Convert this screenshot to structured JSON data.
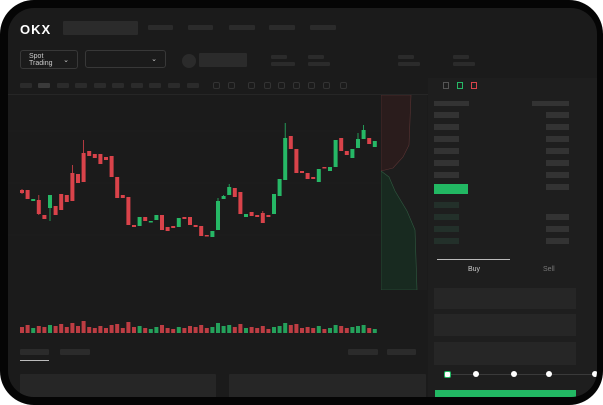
{
  "header": {
    "logo": "OKX"
  },
  "toolbar": {
    "market_select": "Spot Trading",
    "pair_select": ""
  },
  "trade": {
    "tabs": [
      "Buy",
      "Sell"
    ],
    "active_tab": "Buy",
    "slider_percent": 0
  },
  "colors": {
    "up": "#26b866",
    "down": "#d9434a",
    "background": "#1b1b1b",
    "accent": "#22b863"
  },
  "icons": {
    "orderbook_views": [
      "orderbook-both-icon",
      "orderbook-bids-icon",
      "orderbook-asks-icon"
    ]
  },
  "chart_data": {
    "type": "candlestick",
    "grid": true,
    "candles": [
      [
        118,
        115,
        119,
        114
      ],
      [
        118,
        109,
        118,
        109
      ],
      [
        107,
        109,
        109,
        107
      ],
      [
        108,
        94,
        113,
        93
      ],
      [
        93,
        89,
        93,
        89
      ],
      [
        100,
        113,
        100,
        87
      ],
      [
        102,
        93,
        102,
        93
      ],
      [
        114,
        98,
        114,
        98
      ],
      [
        113,
        106,
        113,
        106
      ],
      [
        135,
        107,
        143,
        107
      ],
      [
        134,
        125,
        134,
        125
      ],
      [
        155,
        126,
        168,
        126
      ],
      [
        157,
        152,
        157,
        152
      ],
      [
        154,
        150,
        154,
        150
      ],
      [
        154,
        144,
        154,
        144
      ],
      [
        151,
        148,
        151,
        148
      ],
      [
        152,
        131,
        152,
        131
      ],
      [
        131,
        110,
        131,
        110
      ],
      [
        113,
        110,
        113,
        110
      ],
      [
        111,
        83,
        111,
        83
      ],
      [
        83,
        81,
        83,
        81
      ],
      [
        82,
        91,
        82,
        91
      ],
      [
        91,
        87,
        91,
        87
      ],
      [
        87,
        87,
        87,
        86
      ],
      [
        88,
        93,
        88,
        93
      ],
      [
        93,
        78,
        93,
        78
      ],
      [
        81,
        77,
        81,
        77
      ],
      [
        82,
        80,
        82,
        80
      ],
      [
        81,
        90,
        81,
        90
      ],
      [
        91,
        89,
        91,
        89
      ],
      [
        91,
        83,
        91,
        83
      ],
      [
        83,
        81,
        83,
        81
      ],
      [
        82,
        72,
        82,
        72
      ],
      [
        73,
        72,
        73,
        72
      ],
      [
        71,
        77,
        71,
        77
      ],
      [
        78,
        107,
        110,
        78
      ],
      [
        109,
        112,
        113,
        109
      ],
      [
        113,
        121,
        124,
        113
      ],
      [
        120,
        111,
        120,
        111
      ],
      [
        116,
        94,
        116,
        94
      ],
      [
        91,
        94,
        91,
        94
      ],
      [
        96,
        92,
        96,
        92
      ],
      [
        93,
        91,
        93,
        91
      ],
      [
        95,
        85,
        97,
        85
      ],
      [
        93,
        91,
        93,
        91
      ],
      [
        94,
        114,
        114,
        94
      ],
      [
        112,
        129,
        129,
        112
      ],
      [
        128,
        170,
        185,
        128
      ],
      [
        172,
        159,
        172,
        159
      ],
      [
        159,
        135,
        159,
        135
      ],
      [
        137,
        135,
        137,
        135
      ],
      [
        135,
        129,
        135,
        129
      ],
      [
        131,
        129,
        131,
        129
      ],
      [
        126,
        139,
        139,
        126
      ],
      [
        141,
        140,
        141,
        140
      ],
      [
        137,
        141,
        141,
        137
      ],
      [
        141,
        168,
        168,
        141
      ],
      [
        170,
        157,
        170,
        157
      ],
      [
        157,
        153,
        157,
        153
      ],
      [
        150,
        159,
        159,
        150
      ],
      [
        160,
        169,
        175,
        160
      ],
      [
        169,
        178,
        183,
        169
      ],
      [
        170,
        164,
        170,
        164
      ],
      [
        161,
        167,
        167,
        161
      ]
    ],
    "volume": [
      6,
      8,
      5,
      7,
      6,
      8,
      7,
      9,
      6,
      10,
      7,
      12,
      6,
      5,
      7,
      5,
      8,
      9,
      5,
      11,
      6,
      7,
      5,
      4,
      6,
      8,
      5,
      4,
      6,
      5,
      7,
      6,
      8,
      5,
      6,
      10,
      7,
      8,
      6,
      9,
      5,
      6,
      5,
      7,
      4,
      6,
      7,
      10,
      8,
      9,
      5,
      6,
      5,
      7,
      4,
      5,
      8,
      7,
      5,
      6,
      7,
      8,
      5,
      4
    ]
  }
}
